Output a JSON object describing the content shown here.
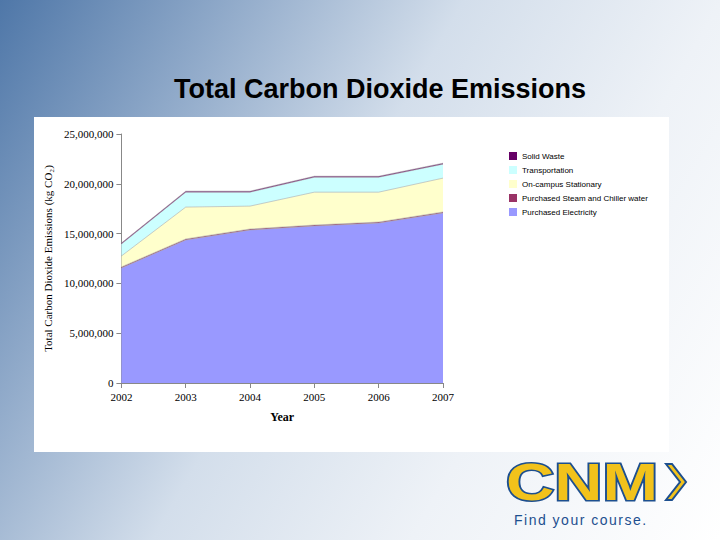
{
  "chart_data": {
    "type": "area",
    "title": "Total Carbon Dioxide Emissions",
    "x_label": "Year",
    "y_label": "Total Carbon Dioxide Emissions (kg CO₂)",
    "categories": [
      "2002",
      "2003",
      "2004",
      "2005",
      "2006",
      "2007"
    ],
    "series": [
      {
        "name": "Purchased Electricity",
        "color": "#9999ff",
        "values": [
          11550000,
          14360000,
          15360000,
          15760000,
          16060000,
          17070000
        ]
      },
      {
        "name": "Purchased Steam and Chiller water",
        "color": "#993366",
        "values": [
          100000,
          100000,
          100000,
          100000,
          100000,
          100000
        ]
      },
      {
        "name": "On-campus Stationary",
        "color": "#ffffcc",
        "values": [
          1100000,
          3200000,
          2300000,
          3300000,
          3000000,
          3400000
        ]
      },
      {
        "name": "Transportation",
        "color": "#ccffff",
        "values": [
          1200000,
          1500000,
          1400000,
          1500000,
          1500000,
          1400000
        ]
      },
      {
        "name": "Solid Waste",
        "color": "#660066",
        "values": [
          100000,
          100000,
          100000,
          100000,
          100000,
          100000
        ]
      }
    ],
    "ylim": [
      0,
      25000000
    ],
    "yticks": [
      0,
      {
        "value": 5000000,
        "label": "5,000,000"
      },
      {
        "value": 10000000,
        "label": "10,000,000"
      },
      {
        "value": 15000000,
        "label": "15,000,000"
      },
      {
        "value": 20000000,
        "label": "20,000,000"
      },
      {
        "value": 25000000,
        "label": "25,000,000"
      }
    ],
    "stacked": true,
    "grid": false,
    "legend": "right"
  },
  "logo": {
    "text": "CNM",
    "tagline": "Find your course."
  }
}
